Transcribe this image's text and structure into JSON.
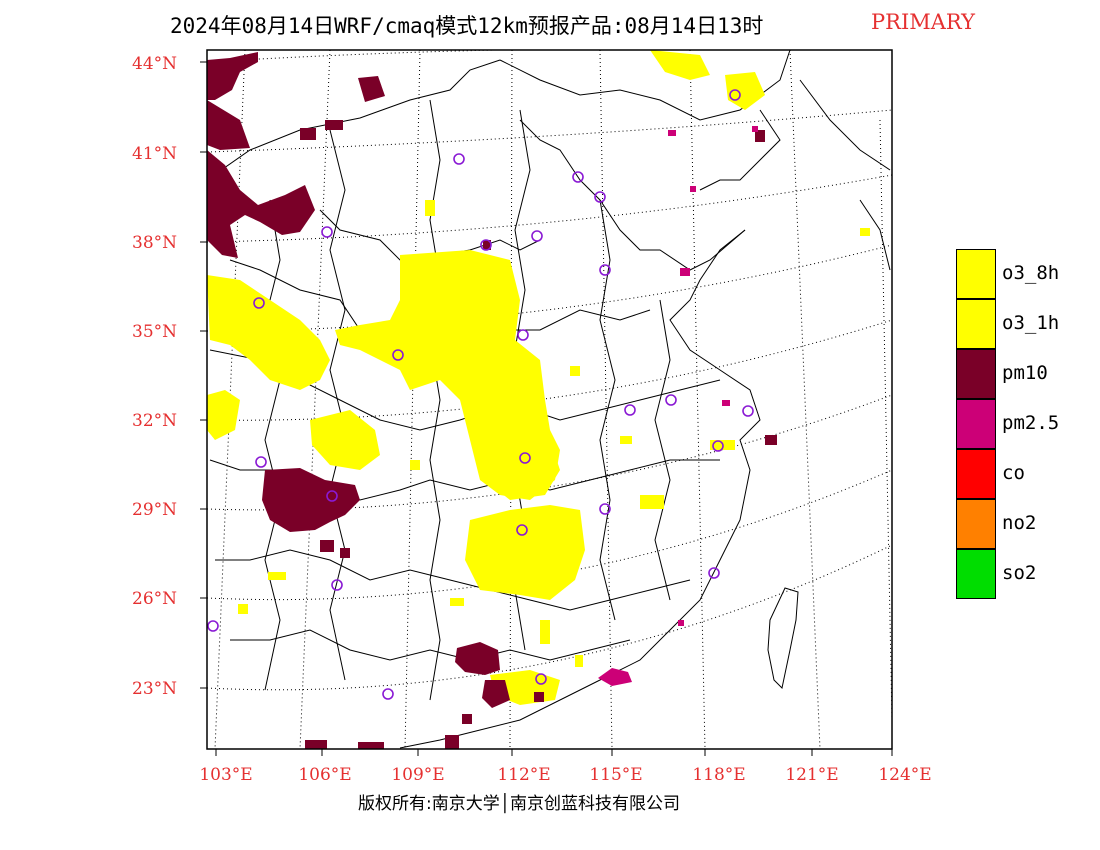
{
  "title": "2024年08月14日WRF/cmaq模式12km预报产品:08月14日13时",
  "title_tag": "PRIMARY",
  "copyright": "版权所有:南京大学│南京创蓝科技有限公司",
  "colors": {
    "o3": "#ffff00",
    "pm10": "#7a0028",
    "pm25": "#cc0077",
    "co": "#ff0000",
    "no2": "#ff8000",
    "so2": "#00dd00",
    "label_red": "#e53030",
    "city_marker": "#8a1ad4"
  },
  "lat_labels": [
    "44°N",
    "41°N",
    "38°N",
    "35°N",
    "32°N",
    "29°N",
    "26°N",
    "23°N"
  ],
  "lon_labels": [
    "103°E",
    "106°E",
    "109°E",
    "112°E",
    "115°E",
    "118°E",
    "121°E",
    "124°E"
  ],
  "legend": [
    {
      "label": "o3_8h",
      "color": "#ffff00"
    },
    {
      "label": "o3_1h",
      "color": "#ffff00"
    },
    {
      "label": "pm10",
      "color": "#7a0028"
    },
    {
      "label": "pm2.5",
      "color": "#cc0077"
    },
    {
      "label": "co",
      "color": "#ff0000"
    },
    {
      "label": "no2",
      "color": "#ff8000"
    },
    {
      "label": "so2",
      "color": "#00dd00"
    }
  ]
}
